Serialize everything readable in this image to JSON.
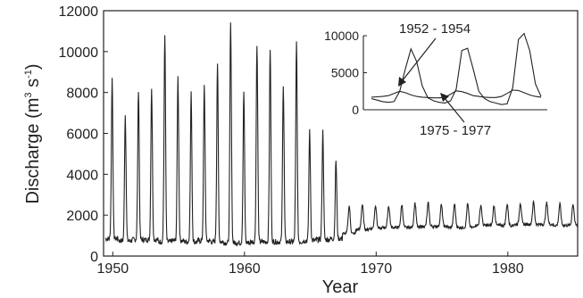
{
  "chart_data": [
    {
      "type": "line",
      "title": "",
      "xlabel": "Year",
      "ylabel": {
        "main": "Discharge (m",
        "sup1": "3",
        "mid": " s",
        "sup2": "-1",
        "end": ")"
      },
      "xlim": [
        1949.3,
        1985.3
      ],
      "ylim": [
        0,
        12000
      ],
      "x_ticks": [
        1950,
        1960,
        1970,
        1980
      ],
      "y_ticks": [
        0,
        2000,
        4000,
        6000,
        8000,
        10000,
        12000
      ],
      "x_tick_labels": [
        "1950",
        "1960",
        "1970",
        "1980"
      ],
      "y_tick_labels": [
        "0",
        "2000",
        "4000",
        "6000",
        "8000",
        "10000",
        "12000"
      ],
      "series": [
        {
          "color": "#222222",
          "start_year": 1949.45,
          "annual_peaks": [
            8700,
            6900,
            8150,
            8250,
            10900,
            8750,
            7950,
            8300,
            9450,
            11400,
            8050,
            10400,
            10150,
            8400,
            10450,
            6100,
            6100,
            4700,
            2450,
            2500,
            2500,
            2450,
            2500,
            2600,
            2600,
            2500,
            2550,
            2550,
            2500,
            2450,
            2550,
            2600,
            2650,
            2600,
            2550,
            2550
          ],
          "annual_lows": [
            850,
            750,
            800,
            800,
            700,
            750,
            700,
            750,
            700,
            650,
            650,
            700,
            700,
            700,
            700,
            750,
            800,
            850,
            1100,
            1300,
            1350,
            1400,
            1400,
            1400,
            1450,
            1450,
            1400,
            1400,
            1500,
            1500,
            1500,
            1550,
            1550,
            1550,
            1500,
            1500
          ]
        }
      ]
    },
    {
      "type": "line",
      "title": "",
      "xlabel": "",
      "ylabel": "",
      "ylim": [
        0,
        10000
      ],
      "y_ticks": [
        0,
        5000,
        10000
      ],
      "y_tick_labels": [
        "0",
        "5000",
        "10000"
      ],
      "annotations": [
        "1952 - 1954",
        "1975 - 1977"
      ],
      "series": [
        {
          "label_annotation": "1952 - 1954",
          "values": [
            1500,
            1300,
            1100,
            1000,
            1100,
            2500,
            5500,
            8200,
            6500,
            3200,
            1600,
            1200,
            1000,
            900,
            1200,
            2800,
            8000,
            8300,
            5500,
            2500,
            1500,
            1100,
            900,
            700,
            800,
            3000,
            9500,
            10300,
            8000,
            3500,
            1800
          ]
        },
        {
          "label_annotation": "1975 - 1977",
          "values": [
            1700,
            1750,
            1800,
            1900,
            2200,
            2500,
            2300,
            2000,
            1800,
            1700,
            1650,
            1600,
            1600,
            1700,
            2100,
            2550,
            2450,
            2200,
            1900,
            1800,
            1700,
            1650,
            1650,
            1800,
            2200,
            2650,
            2600,
            2300,
            2000,
            1800,
            1700
          ]
        }
      ]
    }
  ]
}
